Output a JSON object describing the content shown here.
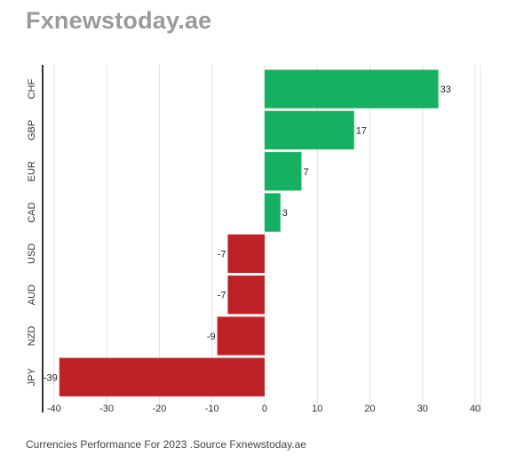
{
  "brand": {
    "title": "Fxnewstoday.ae"
  },
  "chart_data": {
    "type": "bar",
    "orientation": "horizontal",
    "categories": [
      "CHF",
      "GBP",
      "EUR",
      "CAD",
      "USD",
      "AUD",
      "NZD",
      "JPY"
    ],
    "values": [
      33,
      17,
      7,
      3,
      -7,
      -7,
      -9,
      -39
    ],
    "data_labels": [
      "33",
      "17",
      "7",
      "3",
      "-7",
      "-7",
      "-9",
      "-39"
    ],
    "xlim": [
      -42,
      41
    ],
    "xticks": [
      -40,
      -30,
      -20,
      -10,
      0,
      10,
      20,
      30,
      40
    ],
    "grid": true,
    "legend": "none",
    "colors": {
      "positive": "#15b060",
      "negative": "#be2226",
      "grid": "#e2e2e2",
      "axis": "#333333"
    },
    "caption": "Currencies Performance For 2023 .Source Fxnewstoday.ae"
  }
}
